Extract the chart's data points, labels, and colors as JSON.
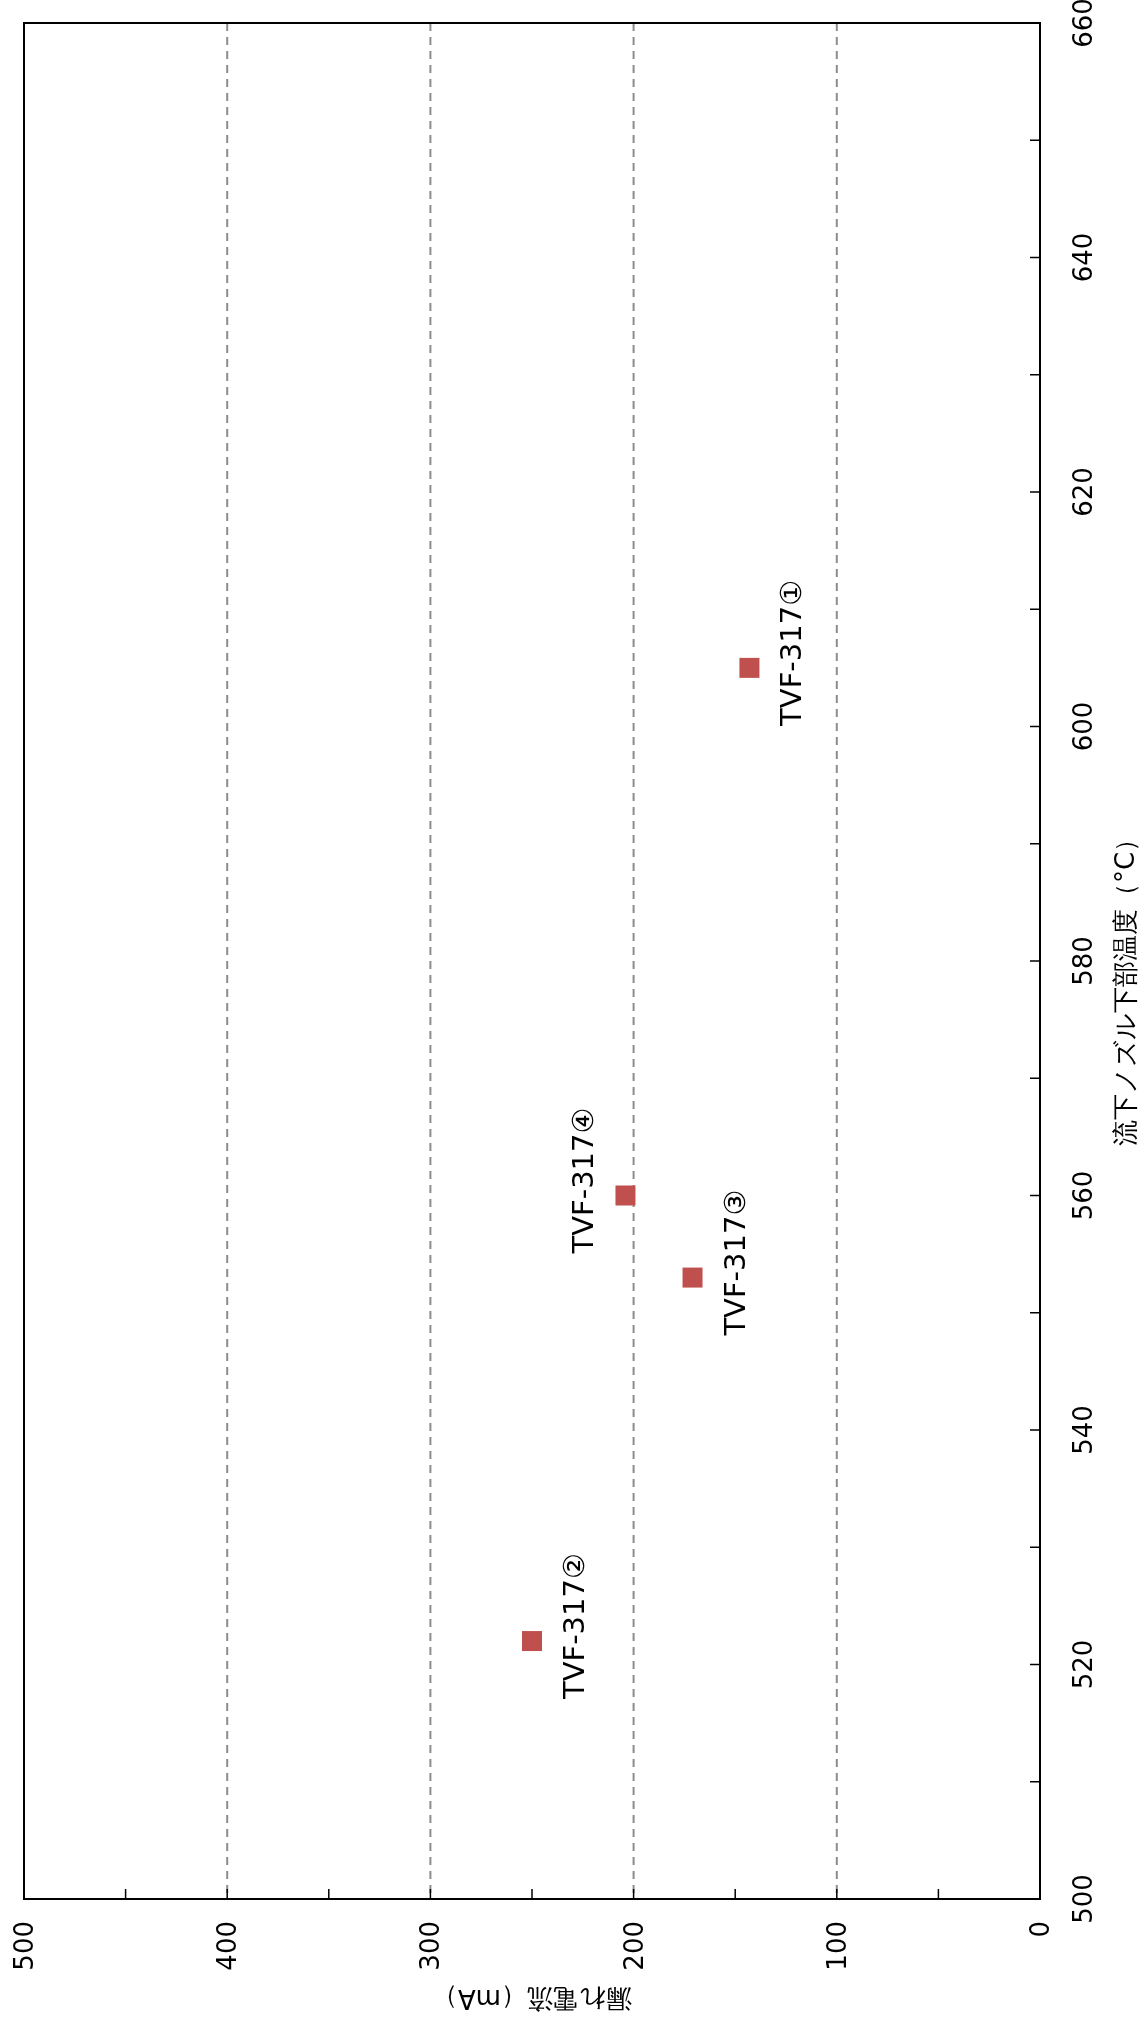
{
  "chart_data": {
    "type": "scatter",
    "xlabel": "漏れ電流（mA）",
    "ylabel": "流下ノズル下部温度（°C）",
    "x": [
      143,
      250,
      171,
      204
    ],
    "values": [
      605,
      522,
      553,
      560
    ],
    "color": "#c0504d",
    "marker": "square",
    "xlim": [
      500,
      0
    ],
    "xticks": [
      500,
      {
        "value": 450,
        "label": null
      },
      400,
      {
        "value": 350,
        "label": null
      },
      300,
      {
        "value": 250,
        "label": null
      },
      200,
      {
        "value": 150,
        "label": null
      },
      100,
      {
        "value": 50,
        "label": null
      },
      0
    ],
    "ylim": [
      500,
      660
    ],
    "yticks": [
      500,
      {
        "value": 510,
        "label": null
      },
      520,
      {
        "value": 530,
        "label": null
      },
      540,
      {
        "value": 550,
        "label": null
      },
      560,
      {
        "value": 570,
        "label": null
      },
      580,
      {
        "value": 590,
        "label": null
      },
      600,
      {
        "value": 610,
        "label": null
      },
      620,
      {
        "value": 630,
        "label": null
      },
      640,
      {
        "value": 650,
        "label": null
      },
      660
    ],
    "grid": "x",
    "annotations": [
      {
        "text": "TVF-317①",
        "x": 143,
        "y": 605
      },
      {
        "text": "TVF-317②",
        "x": 250,
        "y": 522
      },
      {
        "text": "TVF-317③",
        "x": 171,
        "y": 553
      },
      {
        "text": "TVF-317④",
        "x": 204,
        "y": 560
      }
    ]
  }
}
